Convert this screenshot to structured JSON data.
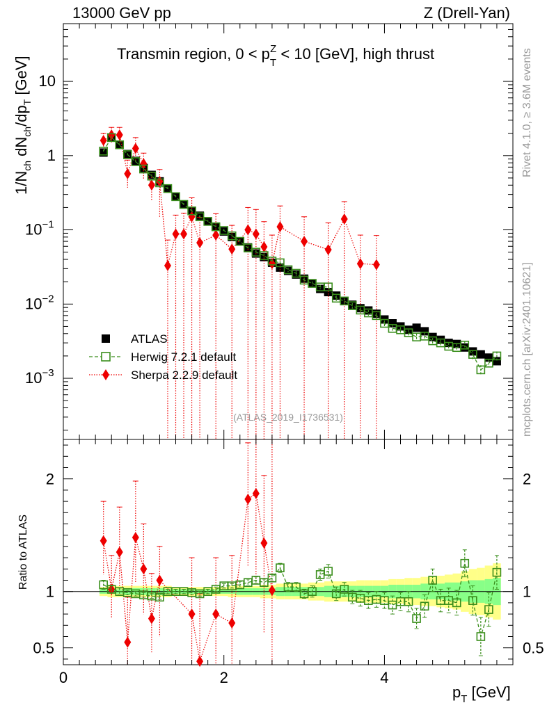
{
  "header": {
    "left": "13000 GeV pp",
    "right": "Z (Drell-Yan)"
  },
  "side_text": {
    "rivet": "Rivet 4.1.0, ≥ 3.6M events",
    "mcplots": "mcplots.cern.ch [arXiv:2401.10621]"
  },
  "watermark": "(ATLAS_2019_I1736531)",
  "colors": {
    "atlas": "#000000",
    "herwig": "#3a8e1c",
    "sherpa": "#ee0000",
    "band_outer": "#ffff88",
    "band_inner": "#88ff88"
  },
  "chart_data": [
    {
      "type": "scatter",
      "title": "Transmin region, 0 < p_T^Z < 10 [GeV], high thrust",
      "title_parts": {
        "pre": "Transmin region, 0 < p",
        "sub": "T",
        "sup": "Z",
        "post": " < 10 [GeV], high thrust"
      },
      "xlabel": "p_T [GeV]",
      "xlabel_parts": {
        "main": "p",
        "sub": "T",
        "unit": " [GeV]"
      },
      "ylabel": "1/N_ch dN_ch/dp_T [GeV]",
      "ylabel_parts": {
        "a": "1/N",
        "a_sub": "ch",
        "b": " dN",
        "b_sub": "ch",
        "c": "/dp",
        "c_sub": "T",
        "d": " [GeV]"
      },
      "yscale": "log",
      "xlim": [
        0,
        5.6
      ],
      "ylim": [
        0.00015,
        60
      ],
      "yticks": [
        {
          "v": 10,
          "mant": "10",
          "exp": ""
        },
        {
          "v": 1,
          "mant": "1",
          "exp": ""
        },
        {
          "v": 0.1,
          "mant": "10",
          "exp": "−1"
        },
        {
          "v": 0.01,
          "mant": "10",
          "exp": "−2"
        },
        {
          "v": 0.001,
          "mant": "10",
          "exp": "−3"
        }
      ],
      "legend": [
        {
          "name": "ATLAS",
          "style": "atlas"
        },
        {
          "name": "Herwig 7.2.1 default",
          "style": "herwig"
        },
        {
          "name": "Sherpa 2.2.9 default",
          "style": "sherpa"
        }
      ],
      "legend_position": "bottom-left",
      "x": [
        0.5,
        0.6,
        0.7,
        0.8,
        0.9,
        1.0,
        1.1,
        1.2,
        1.3,
        1.4,
        1.5,
        1.6,
        1.7,
        1.8,
        1.9,
        2.0,
        2.1,
        2.2,
        2.3,
        2.4,
        2.5,
        2.6,
        2.7,
        2.8,
        2.9,
        3.0,
        3.1,
        3.2,
        3.3,
        3.4,
        3.5,
        3.6,
        3.7,
        3.8,
        3.9,
        4.0,
        4.1,
        4.2,
        4.3,
        4.4,
        4.5,
        4.6,
        4.7,
        4.8,
        4.9,
        5.0,
        5.1,
        5.2,
        5.3,
        5.4
      ],
      "series": [
        {
          "name": "ATLAS",
          "values": [
            1.1,
            1.75,
            1.4,
            1.05,
            0.85,
            0.68,
            0.55,
            0.45,
            0.36,
            0.28,
            0.22,
            0.18,
            0.155,
            0.13,
            0.11,
            0.095,
            0.08,
            0.07,
            0.058,
            0.048,
            0.043,
            0.036,
            0.031,
            0.028,
            0.025,
            0.022,
            0.019,
            0.016,
            0.0145,
            0.013,
            0.011,
            0.0098,
            0.0088,
            0.0082,
            0.0074,
            0.0062,
            0.0055,
            0.005,
            0.0045,
            0.0048,
            0.0043,
            0.0036,
            0.0033,
            0.003,
            0.0029,
            0.0026,
            0.0023,
            0.0021,
            0.0019,
            0.0017
          ]
        },
        {
          "name": "Herwig 7.2.1 default",
          "values": [
            1.15,
            1.75,
            1.4,
            1.03,
            0.83,
            0.66,
            0.53,
            0.43,
            0.36,
            0.28,
            0.22,
            0.18,
            0.15,
            0.13,
            0.11,
            0.098,
            0.083,
            0.07,
            0.057,
            0.05,
            0.045,
            0.038,
            0.036,
            0.029,
            0.026,
            0.021,
            0.019,
            0.017,
            0.017,
            0.012,
            0.011,
            0.0095,
            0.0083,
            0.0076,
            0.007,
            0.0055,
            0.0047,
            0.0045,
            0.0041,
            0.0036,
            0.0037,
            0.0032,
            0.003,
            0.0027,
            0.0026,
            0.0028,
            0.0021,
            0.0013,
            0.0016,
            0.002
          ],
          "errors": [
            0.06,
            0.08,
            0.06,
            0.05,
            0.04,
            0.03,
            0.03,
            0.02,
            0.02,
            0.015,
            0.01,
            0.01,
            0.008,
            0.007,
            0.006,
            0.005,
            0.004,
            0.004,
            0.003,
            0.003,
            0.003,
            0.002,
            0.002,
            0.002,
            0.002,
            0.0015,
            0.0012,
            0.0012,
            0.0012,
            0.001,
            0.0009,
            0.0008,
            0.0007,
            0.0007,
            0.0006,
            0.0005,
            0.0005,
            0.0004,
            0.0004,
            0.0004,
            0.0004,
            0.0003,
            0.0003,
            0.0003,
            0.0003,
            0.0003,
            0.0003,
            0.0002,
            0.0002,
            0.0003
          ]
        },
        {
          "name": "Sherpa 2.2.9 default",
          "x": [
            0.5,
            0.6,
            0.7,
            0.8,
            0.9,
            1.0,
            1.1,
            1.2,
            1.3,
            1.4,
            1.5,
            1.6,
            1.7,
            1.9,
            2.1,
            2.3,
            2.4,
            2.5,
            2.6,
            2.7,
            3.0,
            3.3,
            3.5,
            3.7,
            3.9
          ],
          "values": [
            1.6,
            1.9,
            1.9,
            0.57,
            1.25,
            0.78,
            0.4,
            0.45,
            0.033,
            0.088,
            0.088,
            0.15,
            0.067,
            0.085,
            0.055,
            0.1,
            0.088,
            0.059,
            0.035,
            0.11,
            0.07,
            0.054,
            0.14,
            0.035,
            0.034
          ],
          "err_up": [
            0.4,
            0.5,
            0.5,
            0.3,
            0.5,
            0.3,
            0.2,
            0.2,
            0.04,
            0.07,
            0.08,
            0.12,
            0.08,
            0.08,
            0.06,
            0.1,
            0.1,
            0.07,
            0.05,
            0.1,
            0.08,
            0.07,
            0.1,
            0.05,
            0.05
          ],
          "err_down": [
            0.3,
            0.4,
            0.4,
            0.2,
            0.4,
            0.3,
            0.15,
            0.3,
            0.033,
            0.088,
            0.088,
            0.15,
            0.067,
            0.085,
            0.055,
            0.1,
            0.088,
            0.059,
            0.035,
            0.11,
            0.07,
            0.054,
            0.14,
            0.035,
            0.034
          ]
        }
      ]
    },
    {
      "type": "scatter",
      "title": "",
      "xlabel": "p_T [GeV]",
      "ylabel": "Ratio to ATLAS",
      "xlim": [
        0,
        5.6
      ],
      "ylim": [
        0.35,
        2.35
      ],
      "xticks": [
        0,
        2,
        4
      ],
      "yticks": [
        0.5,
        1,
        2
      ],
      "reference_line": 1,
      "band_inner": [
        0.02,
        0.02,
        0.02,
        0.03,
        0.03,
        0.03,
        0.03,
        0.03,
        0.02,
        0.02,
        0.02,
        0.02,
        0.02,
        0.02,
        0.02,
        0.02,
        0.02,
        0.03,
        0.03,
        0.03,
        0.03,
        0.03,
        0.04,
        0.04,
        0.04,
        0.04,
        0.04,
        0.04,
        0.05,
        0.05,
        0.05,
        0.05,
        0.05,
        0.05,
        0.05,
        0.05,
        0.06,
        0.06,
        0.06,
        0.06,
        0.07,
        0.07,
        0.07,
        0.08,
        0.08,
        0.09,
        0.1,
        0.1,
        0.11,
        0.12
      ],
      "band_outer": [
        0.04,
        0.05,
        0.05,
        0.05,
        0.05,
        0.05,
        0.05,
        0.05,
        0.05,
        0.04,
        0.04,
        0.04,
        0.04,
        0.04,
        0.04,
        0.04,
        0.05,
        0.05,
        0.05,
        0.05,
        0.06,
        0.06,
        0.07,
        0.07,
        0.07,
        0.07,
        0.08,
        0.08,
        0.09,
        0.09,
        0.09,
        0.09,
        0.1,
        0.1,
        0.1,
        0.1,
        0.11,
        0.11,
        0.12,
        0.12,
        0.13,
        0.13,
        0.14,
        0.15,
        0.16,
        0.18,
        0.2,
        0.21,
        0.23,
        0.25
      ],
      "series": [
        {
          "name": "Herwig 7.2.1 default",
          "values": [
            1.06,
            1.02,
            1.0,
            0.99,
            0.98,
            0.97,
            0.96,
            0.95,
            1.0,
            1.0,
            1.0,
            0.99,
            0.98,
            1.0,
            1.02,
            1.05,
            1.05,
            1.06,
            1.08,
            1.1,
            1.08,
            1.12,
            1.21,
            1.04,
            1.04,
            0.98,
            1.0,
            1.15,
            1.18,
            0.98,
            1.02,
            0.95,
            0.94,
            0.92,
            0.93,
            0.92,
            0.88,
            0.91,
            0.91,
            0.76,
            0.87,
            1.1,
            0.92,
            0.92,
            0.9,
            1.25,
            0.92,
            0.6,
            0.84,
            1.17
          ],
          "errors": [
            0.04,
            0.03,
            0.03,
            0.02,
            0.02,
            0.02,
            0.02,
            0.02,
            0.02,
            0.02,
            0.02,
            0.02,
            0.02,
            0.02,
            0.02,
            0.02,
            0.02,
            0.03,
            0.03,
            0.03,
            0.03,
            0.03,
            0.04,
            0.04,
            0.04,
            0.04,
            0.05,
            0.05,
            0.06,
            0.06,
            0.06,
            0.06,
            0.07,
            0.07,
            0.07,
            0.07,
            0.08,
            0.08,
            0.09,
            0.09,
            0.1,
            0.1,
            0.1,
            0.11,
            0.11,
            0.12,
            0.13,
            0.17,
            0.15,
            0.15
          ]
        },
        {
          "name": "Sherpa 2.2.9 default",
          "x": [
            0.5,
            0.6,
            0.7,
            0.8,
            0.9,
            1.0,
            1.1,
            1.2,
            1.6,
            1.7,
            1.9,
            2.1,
            2.3,
            2.4,
            2.5,
            2.6
          ],
          "values": [
            1.45,
            1.02,
            1.35,
            0.55,
            1.48,
            1.2,
            0.76,
            1.1,
            0.8,
            0.38,
            0.8,
            0.72,
            1.82,
            1.87,
            1.43,
            1.01
          ],
          "err_up": [
            0.35,
            0.3,
            0.4,
            0.4,
            0.5,
            0.4,
            0.4,
            0.3,
            0.5,
            0.6,
            0.5,
            0.6,
            0.5,
            0.6,
            0.6,
            1.5
          ],
          "err_down": [
            0.3,
            0.25,
            0.3,
            0.3,
            0.4,
            0.4,
            0.3,
            0.5,
            0.5,
            0.4,
            0.5,
            0.4,
            0.6,
            0.8,
            0.8,
            0.7
          ]
        }
      ]
    }
  ]
}
